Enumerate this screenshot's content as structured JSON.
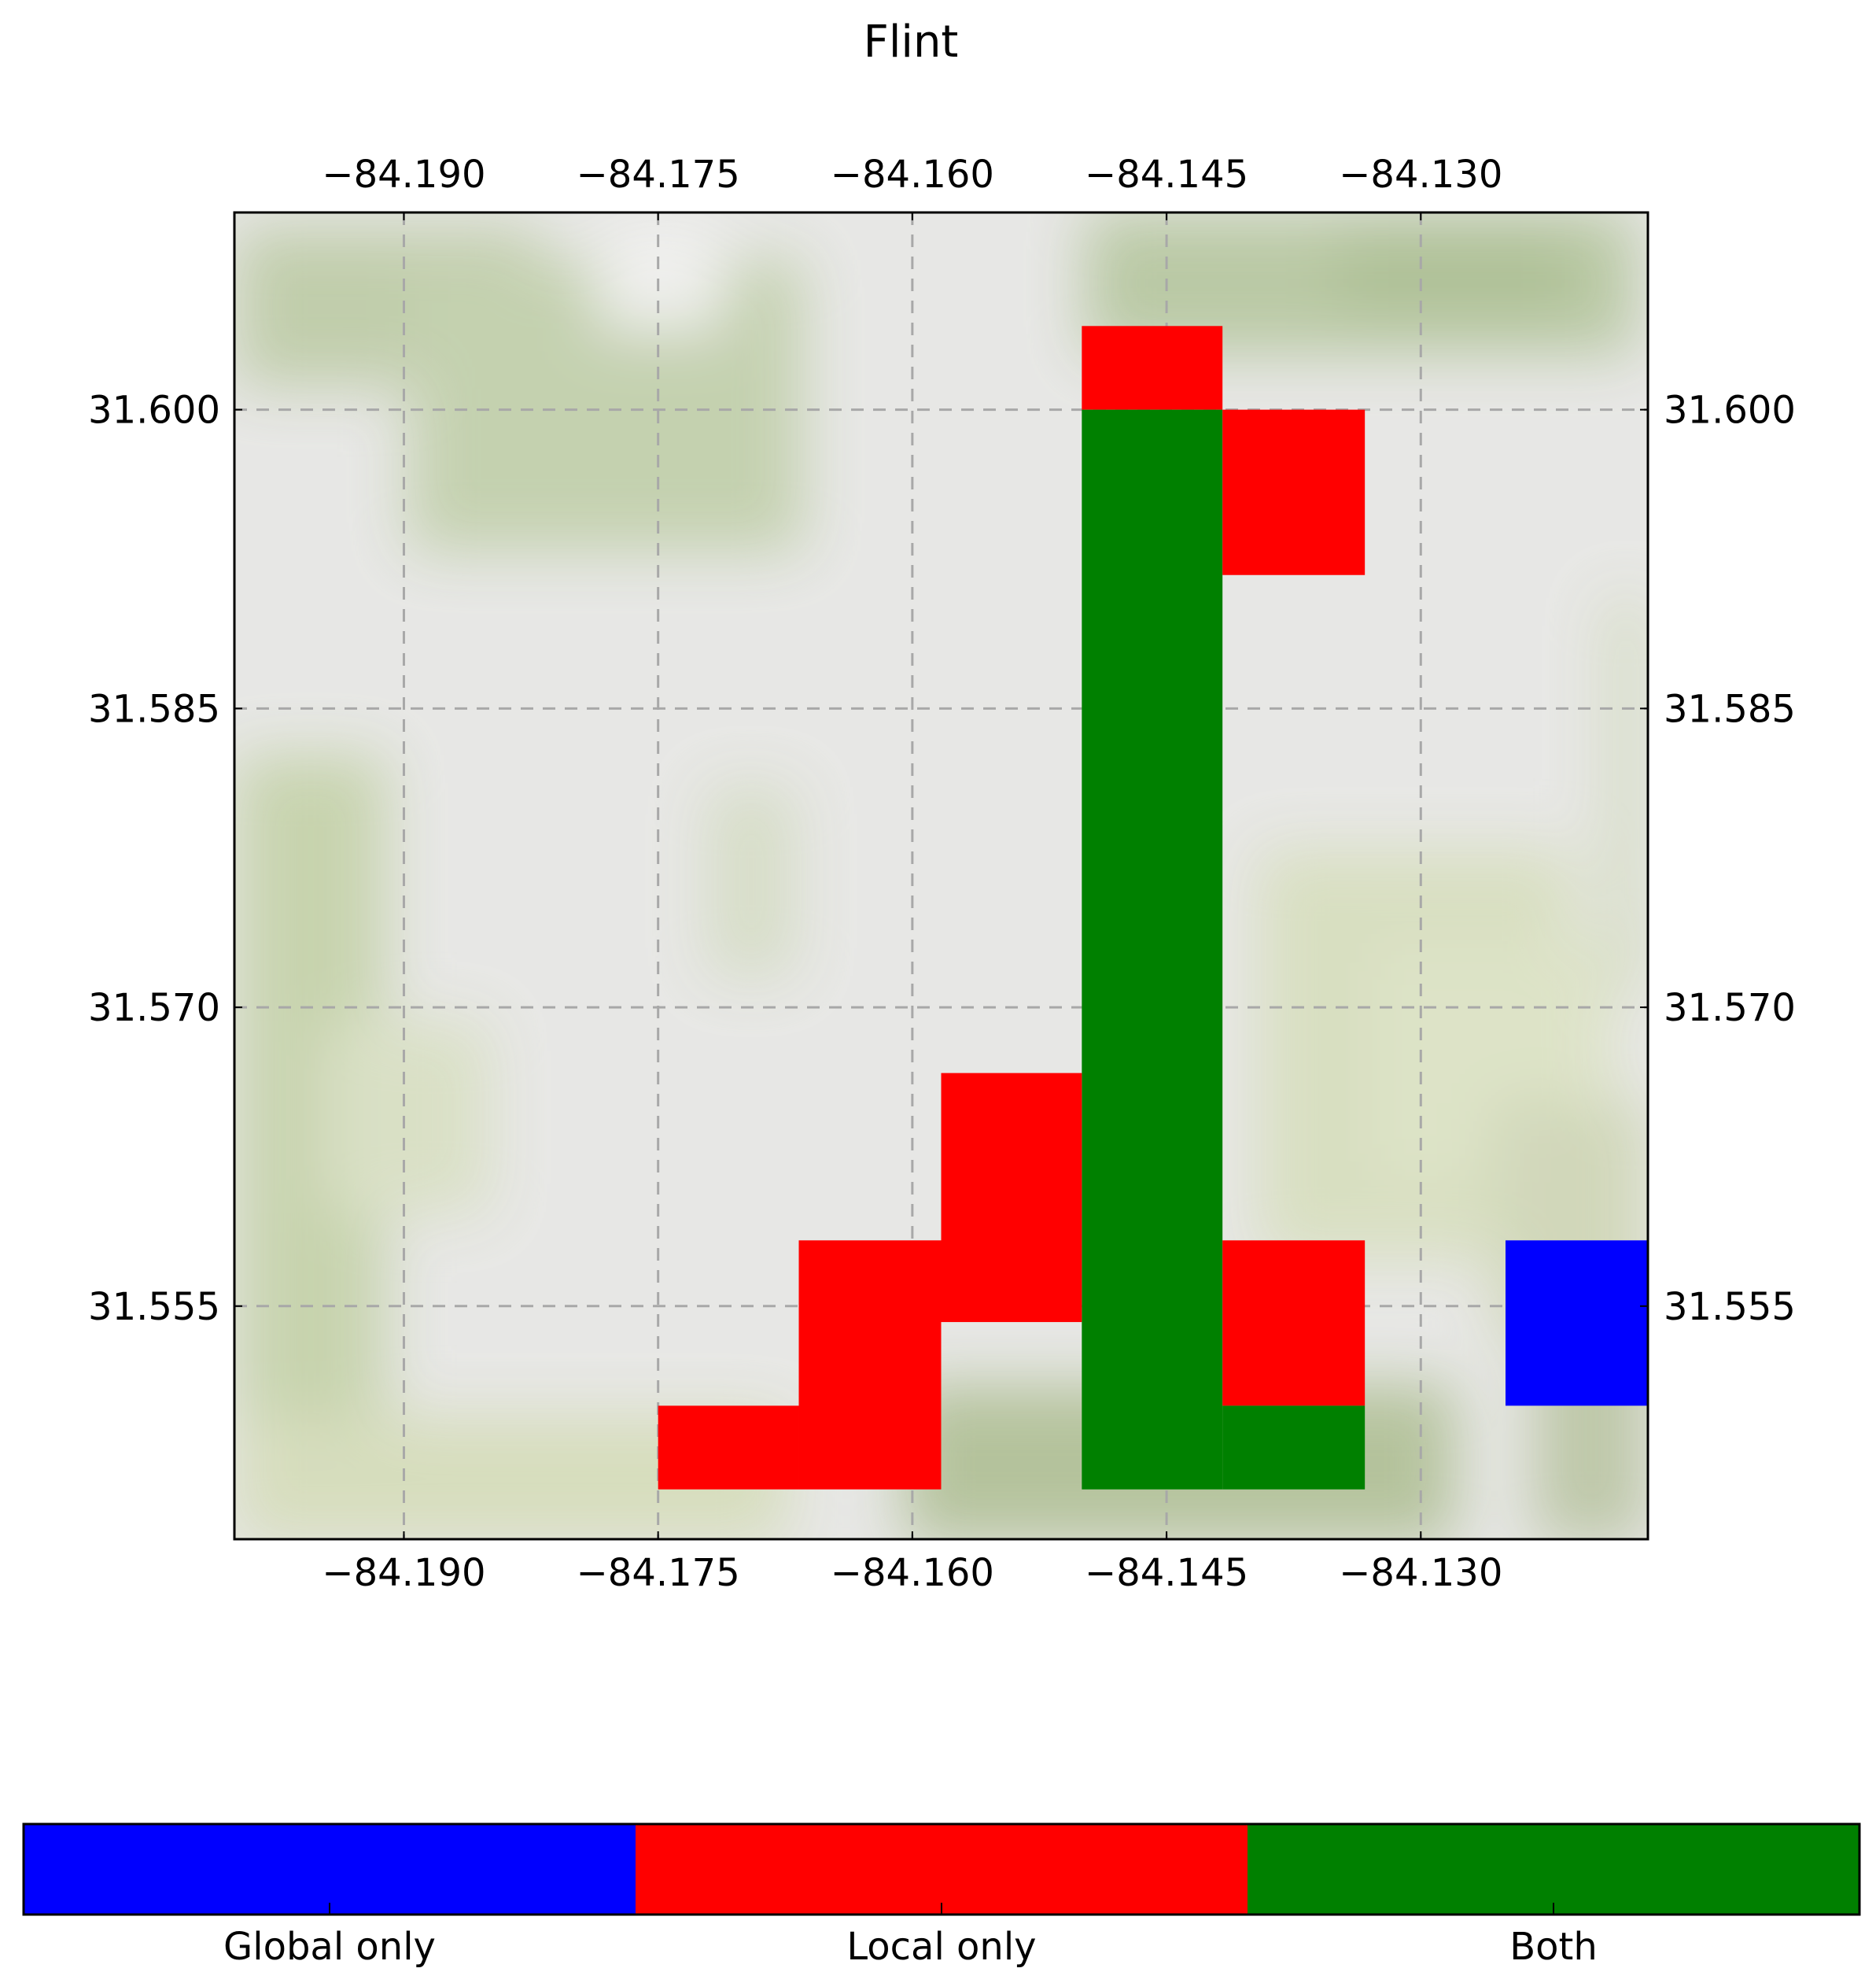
{
  "chart_data": {
    "type": "heatmap",
    "title": "Flint",
    "xlabel": "",
    "ylabel": "",
    "x_ticks": [
      "−84.190",
      "−84.175",
      "−84.160",
      "−84.145",
      "−84.130"
    ],
    "x_tick_values": [
      -84.19,
      -84.175,
      -84.16,
      -84.145,
      -84.13
    ],
    "y_ticks": [
      "31.600",
      "31.585",
      "31.570",
      "31.555"
    ],
    "y_tick_values": [
      31.6,
      31.585,
      31.57,
      31.555
    ],
    "xlim": [
      -84.2,
      -84.1166
    ],
    "ylim": [
      31.5433,
      31.6099
    ],
    "grid": true,
    "background": "terrain basemap (pale grey with green vegetation)",
    "cell_size_deg": [
      0.00833,
      0.00833
    ],
    "colors": {
      "global_only": "#0000ff",
      "local_only": "#ff0000",
      "both": "#008000"
    },
    "cells": [
      {
        "lon": [
          -84.15,
          -84.1417
        ],
        "lat": [
          31.6,
          31.6042
        ],
        "category": "local_only"
      },
      {
        "lon": [
          -84.15,
          -84.1417
        ],
        "lat": [
          31.5458,
          31.6
        ],
        "category": "both"
      },
      {
        "lon": [
          -84.1417,
          -84.1333
        ],
        "lat": [
          31.5917,
          31.6
        ],
        "category": "local_only"
      },
      {
        "lon": [
          -84.1583,
          -84.15
        ],
        "lat": [
          31.5542,
          31.5667
        ],
        "category": "local_only"
      },
      {
        "lon": [
          -84.1667,
          -84.1583
        ],
        "lat": [
          31.5458,
          31.5583
        ],
        "category": "local_only"
      },
      {
        "lon": [
          -84.175,
          -84.1667
        ],
        "lat": [
          31.5458,
          31.55
        ],
        "category": "local_only"
      },
      {
        "lon": [
          -84.1417,
          -84.1333
        ],
        "lat": [
          31.55,
          31.5583
        ],
        "category": "local_only"
      },
      {
        "lon": [
          -84.1417,
          -84.1333
        ],
        "lat": [
          31.5458,
          31.55
        ],
        "category": "both"
      },
      {
        "lon": [
          -84.125,
          -84.1166
        ],
        "lat": [
          31.55,
          31.5583
        ],
        "category": "global_only"
      }
    ],
    "legend": {
      "placement": "bottom",
      "items": [
        {
          "key": "global_only",
          "label": "Global only",
          "color": "#0000ff"
        },
        {
          "key": "local_only",
          "label": "Local only",
          "color": "#ff0000"
        },
        {
          "key": "both",
          "label": "Both",
          "color": "#008000"
        }
      ]
    }
  }
}
